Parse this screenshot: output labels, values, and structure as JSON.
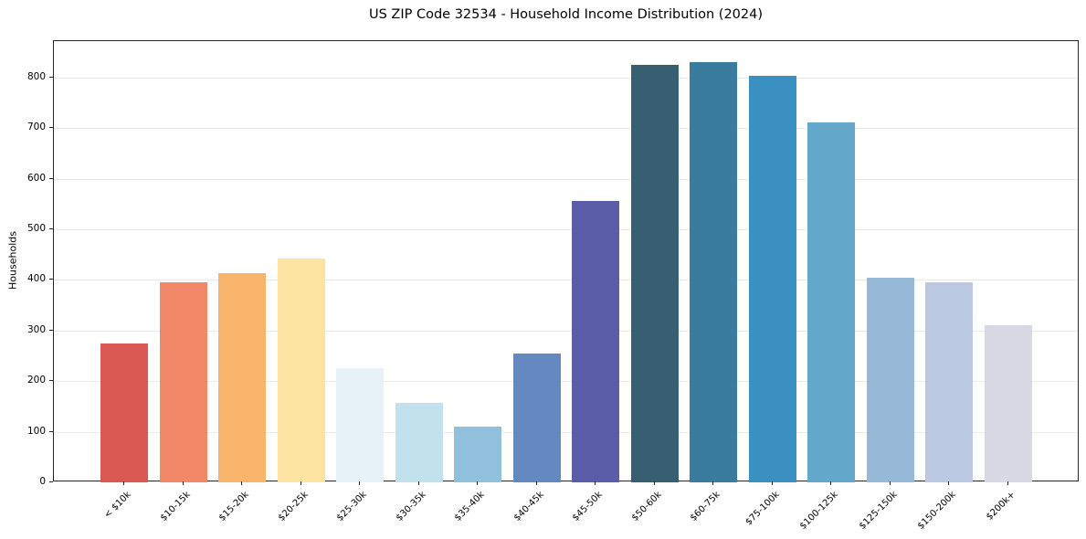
{
  "title": "US ZIP Code 32534 - Household Income Distribution (2024)",
  "chart_data": {
    "type": "bar",
    "title": "US ZIP Code 32534 - Household Income Distribution (2024)",
    "xlabel": "",
    "ylabel": "Households",
    "ylim": [
      0,
      872
    ],
    "yticks": [
      0,
      100,
      200,
      300,
      400,
      500,
      600,
      700,
      800
    ],
    "grid": true,
    "legend": "none",
    "categories": [
      "< $10k",
      "$10-15k",
      "$15-20k",
      "$20-25k",
      "$25-30k",
      "$30-35k",
      "$35-40k",
      "$40-45k",
      "$45-50k",
      "$50-60k",
      "$60-75k",
      "$75-100k",
      "$100-125k",
      "$125-150k",
      "$150-200k",
      "$200k+"
    ],
    "values": [
      274,
      395,
      414,
      443,
      226,
      157,
      111,
      254,
      556,
      825,
      830,
      803,
      711,
      404,
      395,
      310
    ],
    "bar_colors": [
      "#d85a52",
      "#f18968",
      "#f9b46b",
      "#fde4a3",
      "#e6f2f6",
      "#c1e1ed",
      "#91c0dc",
      "#6489c1",
      "#5b5ca7",
      "#385f71",
      "#3a7c9e",
      "#3a90c1",
      "#64a9cc",
      "#97b9d8",
      "#bac8e1",
      "#d9d9e6"
    ],
    "colors": {
      "spine": "#262626",
      "gridline": "#e9e9e9",
      "background": "#ffffff",
      "text": "#000000"
    }
  }
}
